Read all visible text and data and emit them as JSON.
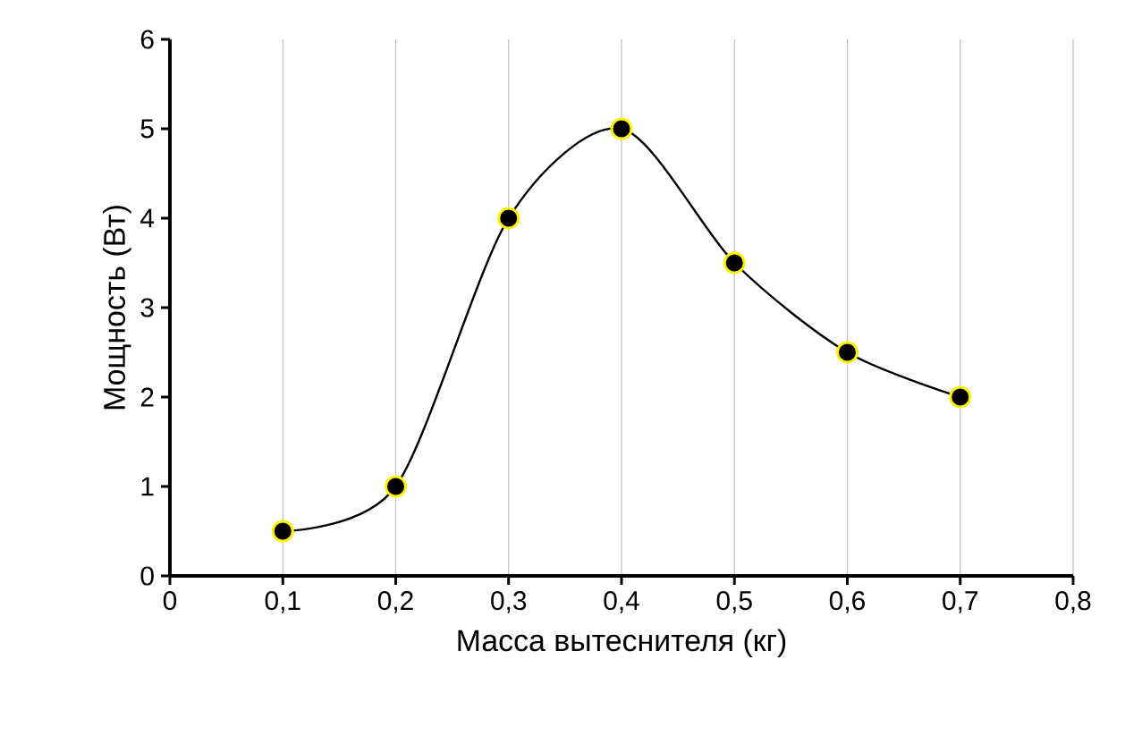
{
  "chart_data": {
    "type": "line",
    "xlabel": "Масса вытеснителя (кг)",
    "ylabel": "Мощность (Вт)",
    "x": [
      0.1,
      0.2,
      0.3,
      0.4,
      0.5,
      0.6,
      0.7
    ],
    "series": [
      {
        "color": "#000000",
        "values": [
          0.5,
          1,
          4,
          5,
          3.5,
          2.5,
          2
        ]
      }
    ],
    "xlim": [
      0,
      0.8
    ],
    "xticks": [
      0,
      {
        "value": 0.1,
        "label": "0,1"
      },
      {
        "value": 0.2,
        "label": "0,2"
      },
      {
        "value": 0.3,
        "label": "0,3"
      },
      {
        "value": 0.4,
        "label": "0,4"
      },
      {
        "value": 0.5,
        "label": "0,5"
      },
      {
        "value": 0.6,
        "label": "0,6"
      },
      {
        "value": 0.7,
        "label": "0,7"
      },
      {
        "value": 0.8,
        "label": "0,8"
      }
    ],
    "ylim": [
      0,
      6
    ],
    "yticks": [
      0,
      1,
      2,
      3,
      4,
      5,
      6
    ],
    "grid": "x",
    "marker": "circle",
    "line_style": "solid"
  }
}
